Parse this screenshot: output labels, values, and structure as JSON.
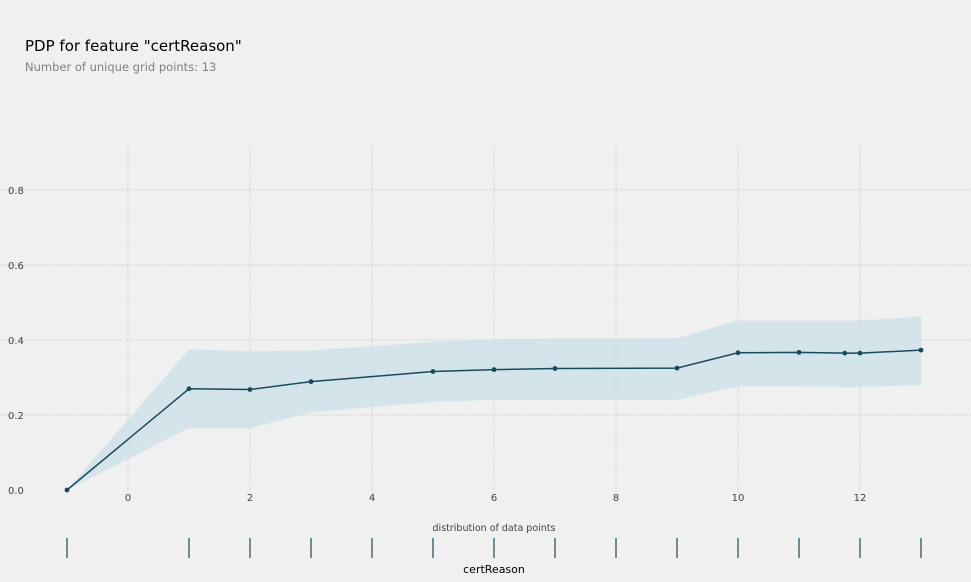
{
  "header": {
    "title": "PDP for feature \"certReason\"",
    "subtitle": "Number of unique grid points: 13"
  },
  "colors": {
    "background": "#f0f0f0",
    "line": "#1a4a5a",
    "band": "#c9e2ea",
    "grid": "#c8c8c8"
  },
  "chart_data": {
    "type": "line",
    "title": "PDP for feature \"certReason\"",
    "subtitle": "Number of unique grid points: 13",
    "xlabel": "certReason",
    "ylabel": "",
    "xlim": [
      -1,
      13
    ],
    "ylim": [
      0,
      0.92
    ],
    "x_ticks": [
      0,
      2,
      4,
      6,
      8,
      10,
      12
    ],
    "y_ticks": [
      0.0,
      0.2,
      0.4,
      0.6,
      0.8
    ],
    "x_tick_labels": [
      "0",
      "2",
      "4",
      "6",
      "8",
      "10",
      "12"
    ],
    "y_tick_labels": [
      "0.0",
      "0.2",
      "0.4",
      "0.6",
      "0.8"
    ],
    "grid": true,
    "series": [
      {
        "x": [
          -1,
          1,
          2,
          3,
          5,
          6,
          7,
          9,
          10,
          11,
          11.75,
          12,
          13
        ],
        "values": [
          0.0,
          0.27,
          0.268,
          0.289,
          0.316,
          0.321,
          0.324,
          0.325,
          0.366,
          0.367,
          0.365,
          0.365,
          0.373
        ],
        "upper": [
          0.0,
          0.375,
          0.37,
          0.372,
          0.395,
          0.402,
          0.404,
          0.405,
          0.452,
          0.452,
          0.452,
          0.452,
          0.462
        ],
        "lower": [
          0.0,
          0.165,
          0.165,
          0.207,
          0.235,
          0.24,
          0.24,
          0.24,
          0.277,
          0.277,
          0.275,
          0.275,
          0.28
        ]
      }
    ],
    "distribution": {
      "label": "distribution of data points",
      "x": [
        -1,
        1,
        2,
        3,
        4,
        5,
        6,
        7,
        8,
        9,
        10,
        11,
        12,
        13
      ]
    }
  }
}
